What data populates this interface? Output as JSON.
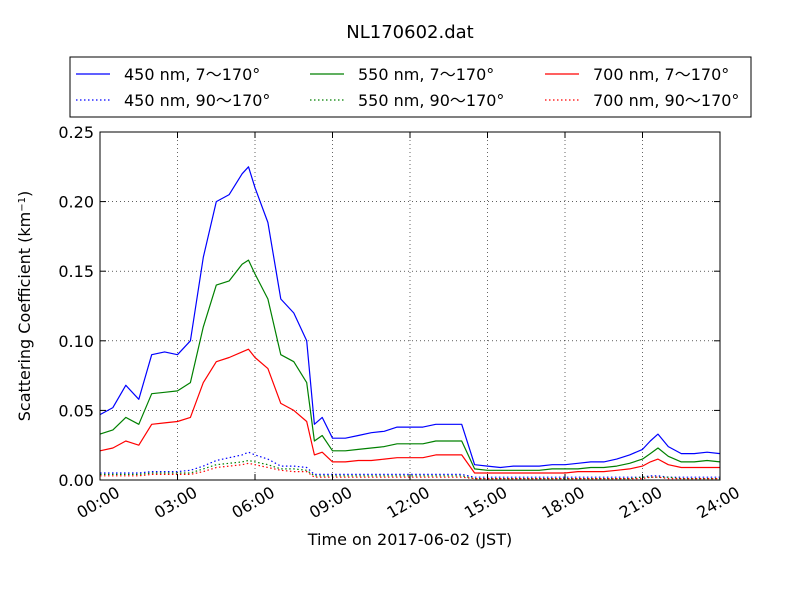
{
  "chart_data": {
    "type": "line",
    "title": "NL170602.dat",
    "xlabel": "Time on 2017-06-02 (JST)",
    "ylabel": "Scattering Coefficient (km",
    "ylabel_sup": "−1",
    "ylabel_close": ")",
    "xlim": [
      0,
      24
    ],
    "ylim": [
      0,
      0.25
    ],
    "grid": true,
    "legend_position": "top",
    "x_ticks": [
      {
        "x": 0,
        "label": "00:00"
      },
      {
        "x": 3,
        "label": "03:00"
      },
      {
        "x": 6,
        "label": "06:00"
      },
      {
        "x": 9,
        "label": "09:00"
      },
      {
        "x": 12,
        "label": "12:00"
      },
      {
        "x": 15,
        "label": "15:00"
      },
      {
        "x": 18,
        "label": "18:00"
      },
      {
        "x": 21,
        "label": "21:00"
      },
      {
        "x": 24,
        "label": "24:00"
      }
    ],
    "y_ticks": [
      {
        "y": 0.0,
        "label": "0.00"
      },
      {
        "y": 0.05,
        "label": "0.05"
      },
      {
        "y": 0.1,
        "label": "0.10"
      },
      {
        "y": 0.15,
        "label": "0.15"
      },
      {
        "y": 0.2,
        "label": "0.20"
      },
      {
        "y": 0.25,
        "label": "0.25"
      }
    ],
    "x": [
      0,
      0.5,
      1,
      1.5,
      2,
      2.5,
      3,
      3.5,
      4,
      4.5,
      5,
      5.5,
      5.75,
      6,
      6.5,
      7,
      7.5,
      8,
      8.3,
      8.6,
      9,
      9.5,
      10,
      10.5,
      11,
      11.5,
      12,
      12.5,
      13,
      13.5,
      14,
      14.5,
      15,
      15.5,
      16,
      16.5,
      17,
      17.5,
      18,
      18.5,
      19,
      19.5,
      20,
      20.5,
      21,
      21.3,
      21.6,
      22,
      22.5,
      23,
      23.5,
      24
    ],
    "series": [
      {
        "name": "450 nm, 7～170°",
        "color": "#0000ff",
        "dash": "solid",
        "values": [
          0.047,
          0.052,
          0.068,
          0.058,
          0.09,
          0.092,
          0.09,
          0.1,
          0.16,
          0.2,
          0.205,
          0.22,
          0.225,
          0.21,
          0.185,
          0.13,
          0.12,
          0.1,
          0.04,
          0.045,
          0.03,
          0.03,
          0.032,
          0.034,
          0.035,
          0.038,
          0.038,
          0.038,
          0.04,
          0.04,
          0.04,
          0.011,
          0.01,
          0.009,
          0.01,
          0.01,
          0.01,
          0.011,
          0.011,
          0.012,
          0.013,
          0.013,
          0.015,
          0.018,
          0.022,
          0.028,
          0.033,
          0.024,
          0.019,
          0.019,
          0.02,
          0.019
        ]
      },
      {
        "name": "450 nm, 90～170°",
        "color": "#0000ff",
        "dash": "dotted",
        "values": [
          0.005,
          0.005,
          0.005,
          0.005,
          0.006,
          0.006,
          0.006,
          0.007,
          0.01,
          0.014,
          0.016,
          0.018,
          0.02,
          0.018,
          0.015,
          0.01,
          0.01,
          0.009,
          0.004,
          0.004,
          0.004,
          0.004,
          0.004,
          0.004,
          0.004,
          0.004,
          0.004,
          0.004,
          0.004,
          0.004,
          0.004,
          0.002,
          0.002,
          0.002,
          0.002,
          0.002,
          0.002,
          0.002,
          0.002,
          0.002,
          0.002,
          0.002,
          0.002,
          0.002,
          0.002,
          0.003,
          0.003,
          0.002,
          0.002,
          0.002,
          0.002,
          0.002
        ]
      },
      {
        "name": "550 nm, 7～170°",
        "color": "#008000",
        "dash": "solid",
        "values": [
          0.033,
          0.036,
          0.045,
          0.04,
          0.062,
          0.063,
          0.064,
          0.07,
          0.11,
          0.14,
          0.143,
          0.155,
          0.158,
          0.148,
          0.13,
          0.09,
          0.085,
          0.07,
          0.028,
          0.032,
          0.021,
          0.021,
          0.022,
          0.023,
          0.024,
          0.026,
          0.026,
          0.026,
          0.028,
          0.028,
          0.028,
          0.008,
          0.007,
          0.007,
          0.007,
          0.007,
          0.007,
          0.008,
          0.008,
          0.008,
          0.009,
          0.009,
          0.01,
          0.012,
          0.015,
          0.019,
          0.023,
          0.017,
          0.013,
          0.013,
          0.014,
          0.013
        ]
      },
      {
        "name": "550 nm, 90～170°",
        "color": "#008000",
        "dash": "dotted",
        "values": [
          0.004,
          0.004,
          0.004,
          0.004,
          0.005,
          0.005,
          0.005,
          0.005,
          0.008,
          0.011,
          0.012,
          0.013,
          0.014,
          0.013,
          0.011,
          0.008,
          0.008,
          0.007,
          0.003,
          0.003,
          0.003,
          0.003,
          0.003,
          0.003,
          0.003,
          0.003,
          0.003,
          0.003,
          0.003,
          0.003,
          0.003,
          0.001,
          0.001,
          0.001,
          0.001,
          0.001,
          0.001,
          0.001,
          0.001,
          0.001,
          0.001,
          0.001,
          0.001,
          0.001,
          0.002,
          0.002,
          0.002,
          0.002,
          0.001,
          0.001,
          0.001,
          0.001
        ]
      },
      {
        "name": "700 nm, 7～170°",
        "color": "#ff0000",
        "dash": "solid",
        "values": [
          0.021,
          0.023,
          0.028,
          0.025,
          0.04,
          0.041,
          0.042,
          0.045,
          0.07,
          0.085,
          0.088,
          0.092,
          0.094,
          0.088,
          0.08,
          0.055,
          0.05,
          0.042,
          0.018,
          0.02,
          0.013,
          0.013,
          0.014,
          0.014,
          0.015,
          0.016,
          0.016,
          0.016,
          0.018,
          0.018,
          0.018,
          0.005,
          0.005,
          0.005,
          0.005,
          0.005,
          0.005,
          0.005,
          0.005,
          0.006,
          0.006,
          0.006,
          0.007,
          0.008,
          0.01,
          0.013,
          0.015,
          0.011,
          0.009,
          0.009,
          0.009,
          0.009
        ]
      },
      {
        "name": "700 nm, 90～170°",
        "color": "#ff0000",
        "dash": "dotted",
        "values": [
          0.003,
          0.003,
          0.003,
          0.003,
          0.004,
          0.004,
          0.004,
          0.004,
          0.006,
          0.009,
          0.01,
          0.011,
          0.012,
          0.011,
          0.009,
          0.007,
          0.006,
          0.006,
          0.002,
          0.002,
          0.002,
          0.002,
          0.002,
          0.002,
          0.002,
          0.002,
          0.002,
          0.002,
          0.002,
          0.002,
          0.002,
          0.001,
          0.001,
          0.001,
          0.001,
          0.001,
          0.001,
          0.001,
          0.001,
          0.001,
          0.001,
          0.001,
          0.001,
          0.001,
          0.001,
          0.002,
          0.002,
          0.001,
          0.001,
          0.001,
          0.001,
          0.001
        ]
      }
    ]
  }
}
